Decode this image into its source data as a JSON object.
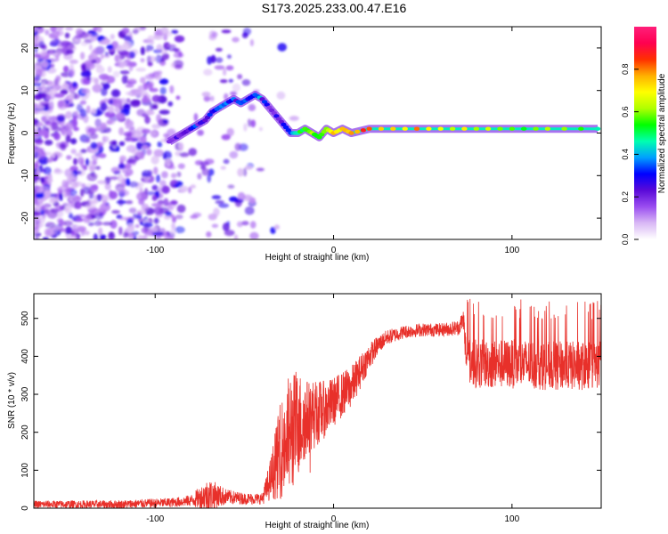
{
  "figure": {
    "title": "S173.2025.233.00.47.E16"
  },
  "chart_data": [
    {
      "type": "heatmap",
      "name": "spectrogram",
      "xlabel": "Height of straight line (km)",
      "ylabel": "Frequency (Hz)",
      "xlim": [
        -168,
        150
      ],
      "ylim": [
        -25,
        25
      ],
      "xticks": [
        -100,
        0,
        100
      ],
      "xtick_labels": [
        "-100",
        "0",
        "100"
      ],
      "yticks": [
        20,
        10,
        0,
        -10,
        -20
      ],
      "ytick_labels": [
        "20",
        "10",
        "0",
        "-10",
        "-20"
      ],
      "colorbar": {
        "label": "Normalized spectral amplitude",
        "range": [
          0,
          1
        ],
        "ticks": [
          0.0,
          0.2,
          0.4,
          0.6,
          0.8
        ],
        "tick_labels": [
          "0.0",
          "0.2",
          "0.4",
          "0.6",
          "0.8"
        ],
        "colormap": [
          "#ffffff",
          "#d9b8f5",
          "#9a4df0",
          "#5a0ad8",
          "#0000ff",
          "#00a0ff",
          "#00ffb0",
          "#00ff00",
          "#b0ff00",
          "#ffff00",
          "#ffb000",
          "#ff3000",
          "#ff0050",
          "#ff1f7a"
        ]
      },
      "signal_track": {
        "x": [
          -92,
          -88,
          -84,
          -80,
          -76,
          -72,
          -68,
          -64,
          -60,
          -56,
          -52,
          -48,
          -44,
          -40,
          -36,
          -32,
          -28,
          -24,
          -20,
          -16,
          -12,
          -8,
          -4,
          0,
          5,
          10,
          20,
          40,
          60,
          80,
          100,
          120,
          148
        ],
        "y": [
          -2,
          -1,
          0,
          1,
          2,
          3,
          5,
          6,
          7,
          8,
          7,
          8,
          9,
          8,
          6,
          4,
          2,
          0,
          0,
          1,
          0,
          -1,
          1,
          0,
          1,
          0,
          1,
          1,
          1,
          1,
          1,
          1,
          1
        ],
        "amplitude": [
          0.15,
          0.2,
          0.25,
          0.3,
          0.25,
          0.3,
          0.35,
          0.3,
          0.35,
          0.3,
          0.3,
          0.35,
          0.35,
          0.3,
          0.25,
          0.25,
          0.3,
          0.4,
          0.5,
          0.55,
          0.6,
          0.6,
          0.65,
          0.7,
          0.75,
          0.8,
          0.8,
          0.75,
          0.7,
          0.65,
          0.6,
          0.55,
          0.5
        ]
      }
    },
    {
      "type": "line",
      "name": "snr",
      "xlabel": "Height of straight line (km)",
      "ylabel": "SNR (10 * v/v)",
      "xlim": [
        -168,
        150
      ],
      "ylim": [
        0,
        565
      ],
      "xticks": [
        -100,
        0,
        100
      ],
      "xtick_labels": [
        "-100",
        "0",
        "100"
      ],
      "yticks": [
        0,
        100,
        200,
        300,
        400,
        500
      ],
      "ytick_labels": [
        "0",
        "100",
        "200",
        "300",
        "400",
        "500"
      ],
      "color": "#e8302a",
      "envelope": {
        "x": [
          -168,
          -120,
          -90,
          -80,
          -70,
          -60,
          -50,
          -40,
          -35,
          -30,
          -25,
          -20,
          -15,
          -10,
          -5,
          0,
          5,
          10,
          15,
          20,
          25,
          30,
          40,
          50,
          60,
          70,
          73,
          74,
          76,
          80,
          90,
          100,
          110,
          120,
          130,
          140,
          150
        ],
        "base": [
          10,
          10,
          15,
          20,
          35,
          30,
          25,
          25,
          80,
          150,
          190,
          220,
          240,
          250,
          260,
          280,
          300,
          320,
          360,
          400,
          430,
          450,
          465,
          470,
          470,
          475,
          500,
          410,
          390,
          380,
          380,
          380,
          380,
          375,
          375,
          375,
          380
        ],
        "amp": [
          20,
          22,
          25,
          30,
          90,
          40,
          30,
          30,
          120,
          250,
          330,
          290,
          200,
          180,
          150,
          130,
          120,
          110,
          90,
          70,
          50,
          40,
          35,
          35,
          35,
          40,
          60,
          120,
          130,
          130,
          130,
          130,
          130,
          130,
          130,
          130,
          130
        ]
      }
    }
  ]
}
